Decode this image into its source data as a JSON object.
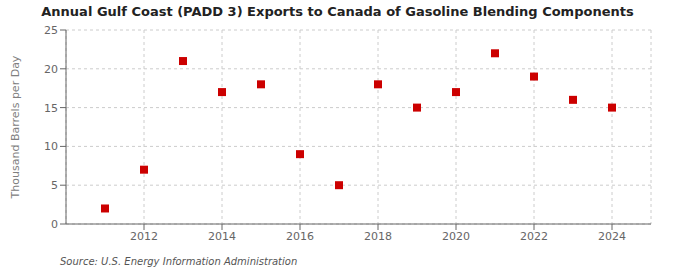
{
  "chart_data": {
    "type": "scatter",
    "title": "Annual Gulf Coast (PADD 3) Exports to Canada of Gasoline Blending Components",
    "ylabel": "Thousand Barrels per Day",
    "annotations": [
      "Source: U.S. Energy Information Administration"
    ],
    "x": [
      2011,
      2012,
      2013,
      2014,
      2015,
      2016,
      2017,
      2018,
      2019,
      2020,
      2021,
      2022,
      2023,
      2024
    ],
    "values": [
      2.0,
      7.0,
      21.0,
      17.0,
      18.0,
      9.0,
      5.0,
      18.0,
      15.0,
      17.0,
      22.0,
      19.0,
      16.0,
      15.0
    ],
    "color": "#cc0000",
    "marker": "square",
    "xlim": [
      2010,
      2025
    ],
    "xticks": [
      2012,
      2014,
      2016,
      2018,
      2020,
      2022,
      2024
    ],
    "ylim": [
      0,
      25
    ],
    "yticks": [
      0,
      5,
      10,
      15,
      20,
      25
    ],
    "grid": true
  }
}
